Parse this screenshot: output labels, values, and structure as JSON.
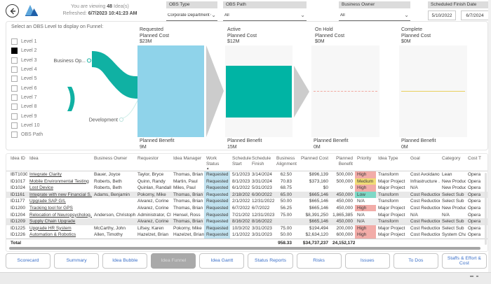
{
  "header": {
    "viewing_prefix": "You are viewing",
    "viewing_count": "48",
    "viewing_suffix": "Idea(s)",
    "refreshed_label": "Refreshed:",
    "refreshed_value": "6/7/2023 10:41:23 AM"
  },
  "slicers": {
    "obs_type": {
      "label": "OBS Type",
      "value": "Corporate Department OBS"
    },
    "obs_path": {
      "label": "OBS Path",
      "value": "All"
    },
    "business_owner": {
      "label": "Business Owner",
      "value": "All"
    },
    "scheduled_finish": {
      "label": "Scheduled Finish Date",
      "start": "5/10/2022",
      "end": "6/7/2024"
    }
  },
  "funnel": {
    "prompt": "Select an OBS Level to display on Funnel:",
    "levels": [
      {
        "label": "Level 1",
        "checked": false
      },
      {
        "label": "Level 2",
        "checked": true
      },
      {
        "label": "Level 3",
        "checked": false
      },
      {
        "label": "Level 4",
        "checked": false
      },
      {
        "label": "Level 5",
        "checked": false
      },
      {
        "label": "Level 6",
        "checked": false
      },
      {
        "label": "Level 7",
        "checked": false
      },
      {
        "label": "Level 8",
        "checked": false
      },
      {
        "label": "Level 9",
        "checked": false
      },
      {
        "label": "Level 10",
        "checked": false
      },
      {
        "label": "OBS Path",
        "checked": false
      }
    ],
    "nodes": [
      {
        "label": "Business Op..."
      },
      {
        "label": "Development"
      }
    ],
    "stages": [
      {
        "name": "Requested",
        "cost_label": "Planned Cost",
        "cost": "$23M",
        "benefit_label": "Planned Benefit",
        "benefit": "9M"
      },
      {
        "name": "Active",
        "cost_label": "Planned Cost",
        "cost": "$12M",
        "benefit_label": "Planned Benefit",
        "benefit": "15M"
      },
      {
        "name": "On Hold",
        "cost_label": "Planned Cost",
        "cost": "$0M",
        "benefit_label": "Planned Benefit",
        "benefit": "0M"
      },
      {
        "name": "Complete",
        "cost_label": "Planned Cost",
        "cost": "$0M",
        "benefit_label": "Planned Benefit",
        "benefit": "0M"
      }
    ],
    "colors": {
      "requested_bar": "#8fd3ea",
      "active_bar": "#00b4a4",
      "sankey_ribbon": "#10b1a3",
      "panel": "#f7f7f7",
      "arrow": "#cccccc",
      "onhold_line": "#f0a89e",
      "complete_line": "#e8cf5e"
    }
  },
  "table": {
    "columns": [
      {
        "key": "idea_id",
        "label": "Idea ID"
      },
      {
        "key": "idea",
        "label": "Idea"
      },
      {
        "key": "business_owner",
        "label": "Business Owner"
      },
      {
        "key": "requestor",
        "label": "Requestor"
      },
      {
        "key": "idea_manager",
        "label": "Idea Manager"
      },
      {
        "key": "work_status",
        "label": "Work Status",
        "sorted": true
      },
      {
        "key": "schedule_start",
        "label": "Schedule Start"
      },
      {
        "key": "schedule_finish",
        "label": "Schedule Finish"
      },
      {
        "key": "business_alignment",
        "label": "Business Alignment",
        "align": "right"
      },
      {
        "key": "planned_cost",
        "label": "Planned Cost",
        "align": "right"
      },
      {
        "key": "planned_benefit",
        "label": "Planned Benefit",
        "align": "right"
      },
      {
        "key": "priority",
        "label": "Priority"
      },
      {
        "key": "idea_type",
        "label": "Idea Type"
      },
      {
        "key": "goal",
        "label": "Goal"
      },
      {
        "key": "category",
        "label": "Category"
      },
      {
        "key": "cost_type",
        "label": "Cost T"
      }
    ],
    "priority_colors": {
      "High": "#f2aca8",
      "Medium": "#f1dc77",
      "Low": "#7ed8c6"
    },
    "rows": [
      {
        "selected": false,
        "cells": [
          "IBT1030",
          "Integrate Clarity",
          "Bauer, Joyce",
          "Taylor, Bryce",
          "Thomas, Brian",
          "Requested",
          "5/1/2023",
          "3/14/2024",
          "62.50",
          "$896,139",
          "500,000",
          "High",
          "Transform",
          "Cost Avoidance",
          "Lean",
          "Opera"
        ]
      },
      {
        "selected": false,
        "cells": [
          "ID1017",
          "Mobile Environmental Testing",
          "Roberts, Beth",
          "Quinn, Randy",
          "Martin, Paul",
          "Requested",
          "8/1/2023",
          "3/31/2024",
          "70.83",
          "$373,160",
          "500,000",
          "Medium",
          "Major Project",
          "Infrastructure ...",
          "New Product ...",
          "Opera"
        ]
      },
      {
        "selected": false,
        "cells": [
          "ID1024",
          "Lost Device",
          "Roberts, Beth",
          "Quinlan, Randall",
          "Miles, Paul",
          "Requested",
          "6/1/2022",
          "5/31/2023",
          "68.75",
          "$0",
          "0",
          "High",
          "Major Project",
          "N/A",
          "New Product ...",
          "Opera"
        ]
      },
      {
        "selected": true,
        "cells": [
          "ID1161",
          "Integrate with new Financial S...",
          "Adams, Benjamin",
          "Pokorny, Mike",
          "Thomas, Brian",
          "Requested",
          "2/18/2022",
          "6/30/2022",
          "65.00",
          "$665,146",
          "450,000",
          "Low",
          "Transform",
          "Cost Reduction",
          "Select Sub",
          "Opera"
        ]
      },
      {
        "selected": false,
        "cells": [
          "ID1177",
          "Upgrade SAP G/L",
          "",
          "Alvarez, Corine",
          "Thomas, Brian",
          "Requested",
          "2/1/2022",
          "12/31/2022",
          "50.00",
          "$665,146",
          "450,000",
          "N/A",
          "Transform",
          "Cost Reduction",
          "Select Sub",
          "Opera"
        ]
      },
      {
        "selected": false,
        "cells": [
          "ID1200",
          "Tracking tool for GPS",
          "",
          "Alvarez, Corine",
          "Thomas, Brian",
          "Requested",
          "6/7/2022",
          "6/7/2022",
          "56.25",
          "$665,146",
          "450,000",
          "High",
          "Major Project",
          "Cost Reduction",
          "New Product ...",
          "Opera"
        ]
      },
      {
        "selected": false,
        "cells": [
          "ID1204",
          "Relocation of Neuropsycholog...",
          "Anderson, Christopher",
          "Administrator, Cl...",
          "Hensel, Ross",
          "Requested",
          "7/21/2022",
          "12/31/2023",
          "75.00",
          "$8,391,250",
          "1,865,385",
          "N/A",
          "Major Project",
          "N/A",
          "N/A",
          "Opera"
        ]
      },
      {
        "selected": true,
        "cells": [
          "ID1209",
          "Supply Chain Upgrade",
          "",
          "Alvarez, Corine",
          "Thomas, Brian",
          "Requested",
          "8/16/2022",
          "8/16/2022",
          "",
          "$665,146",
          "450,000",
          "N/A",
          "Transform",
          "Cost Reduction",
          "Select Sub",
          "Opera"
        ]
      },
      {
        "selected": false,
        "cells": [
          "ID1225",
          "Upgrade HR System",
          "McCarthy, John",
          "Lifsey, Karen",
          "Pokorny, Mike",
          "Requested",
          "10/3/2022",
          "3/31/2023",
          "75.00",
          "$194,494",
          "200,000",
          "High",
          "Major Project",
          "Cost Reduction",
          "Select Sub",
          "Opera"
        ]
      },
      {
        "selected": false,
        "cells": [
          "ID1226",
          "Automation & Robotics",
          "Allen, Timothy",
          "Hazelzet, Brian",
          "Hazelzet, Brian",
          "Requested",
          "1/1/2022",
          "3/31/2023",
          "50.00",
          "$2,634,120",
          "600,000",
          "High",
          "Major Project",
          "Cost Reduction",
          "System Change",
          "Opera"
        ]
      }
    ],
    "total": {
      "label": "Total",
      "business_alignment": "958.33",
      "planned_cost": "$34,737,237",
      "planned_benefit": "24,152,172"
    }
  },
  "nav": {
    "buttons": [
      {
        "label": "Scorecard",
        "active": false
      },
      {
        "label": "Summary",
        "active": false
      },
      {
        "label": "Idea Bubble",
        "active": false
      },
      {
        "label": "Idea Funnel",
        "active": true
      },
      {
        "label": "Idea Gantt",
        "active": false
      },
      {
        "label": "Status Reports",
        "active": false
      },
      {
        "label": "Risks",
        "active": false
      },
      {
        "label": "Issues",
        "active": false
      },
      {
        "label": "To Dos",
        "active": false
      },
      {
        "label": "Staffs & Effort & Cost",
        "active": false
      }
    ]
  }
}
